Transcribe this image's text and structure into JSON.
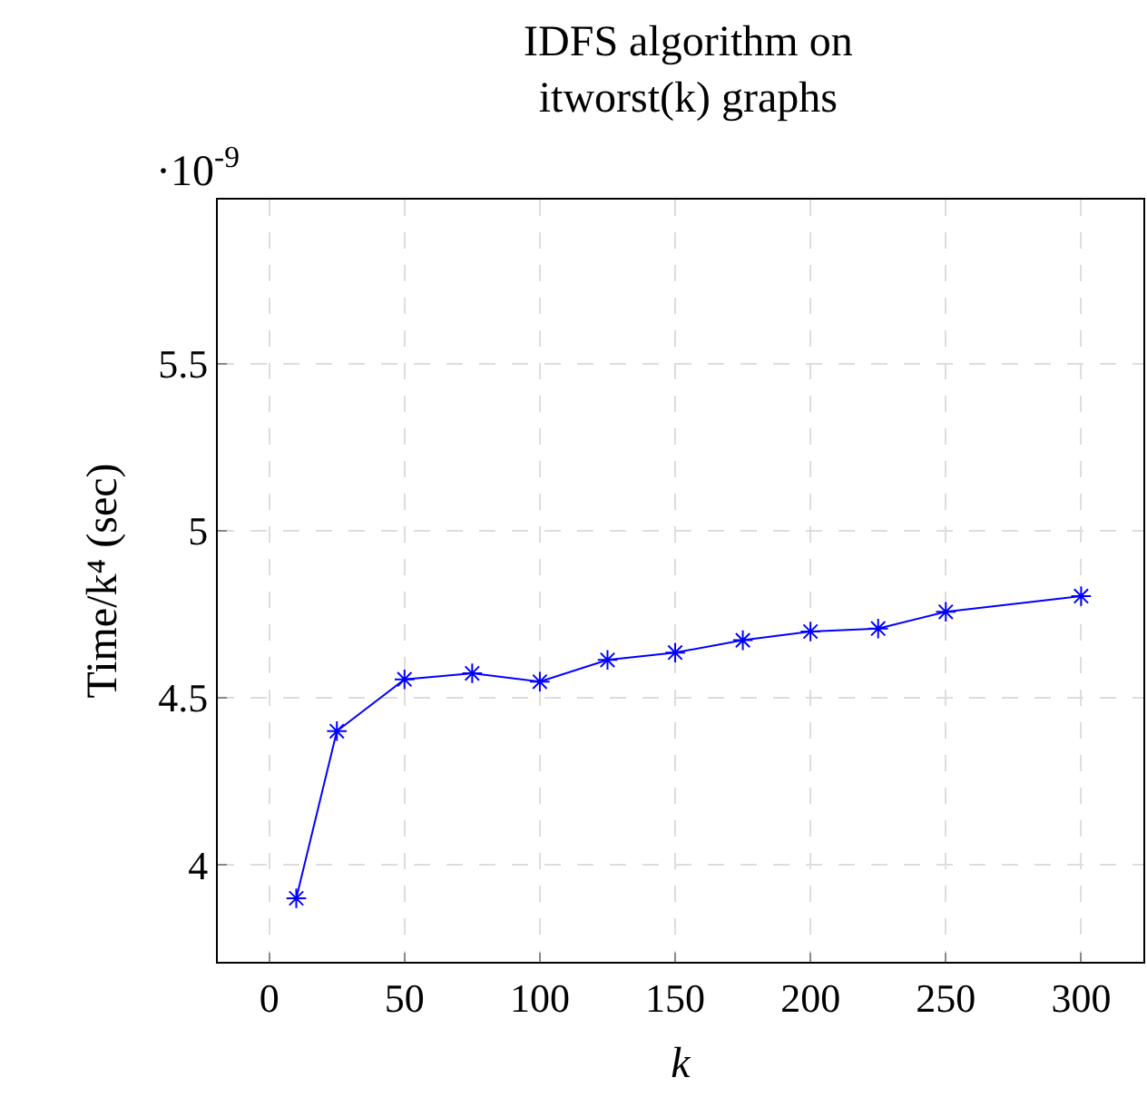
{
  "chart_data": {
    "type": "line",
    "title": "IDFS algorithm on\nitworst(k) graphs",
    "xlabel": "k",
    "ylabel": "Time/k⁴ (sec)",
    "annotations": [
      "·10$^{-9}$"
    ],
    "x": [
      10,
      25,
      50,
      75,
      100,
      125,
      150,
      175,
      200,
      225,
      250,
      300
    ],
    "series": [
      {
        "color": "#0000ff",
        "values": [
          3.9,
          4.4,
          4.555,
          4.573,
          4.548,
          4.613,
          4.635,
          4.672,
          4.698,
          4.707,
          4.757,
          4.804
        ]
      }
    ],
    "xlim": [
      -19,
      323
    ],
    "ylim": [
      3.71,
      5.99
    ],
    "xticks": [
      0,
      50,
      100,
      150,
      200,
      250,
      300
    ],
    "yticks": [
      4,
      {
        "value": 4.5,
        "label": "4.5"
      },
      5,
      {
        "value": 5.5,
        "label": "5.5"
      }
    ],
    "grid": true,
    "marker": "cross",
    "line_style": "solid"
  }
}
